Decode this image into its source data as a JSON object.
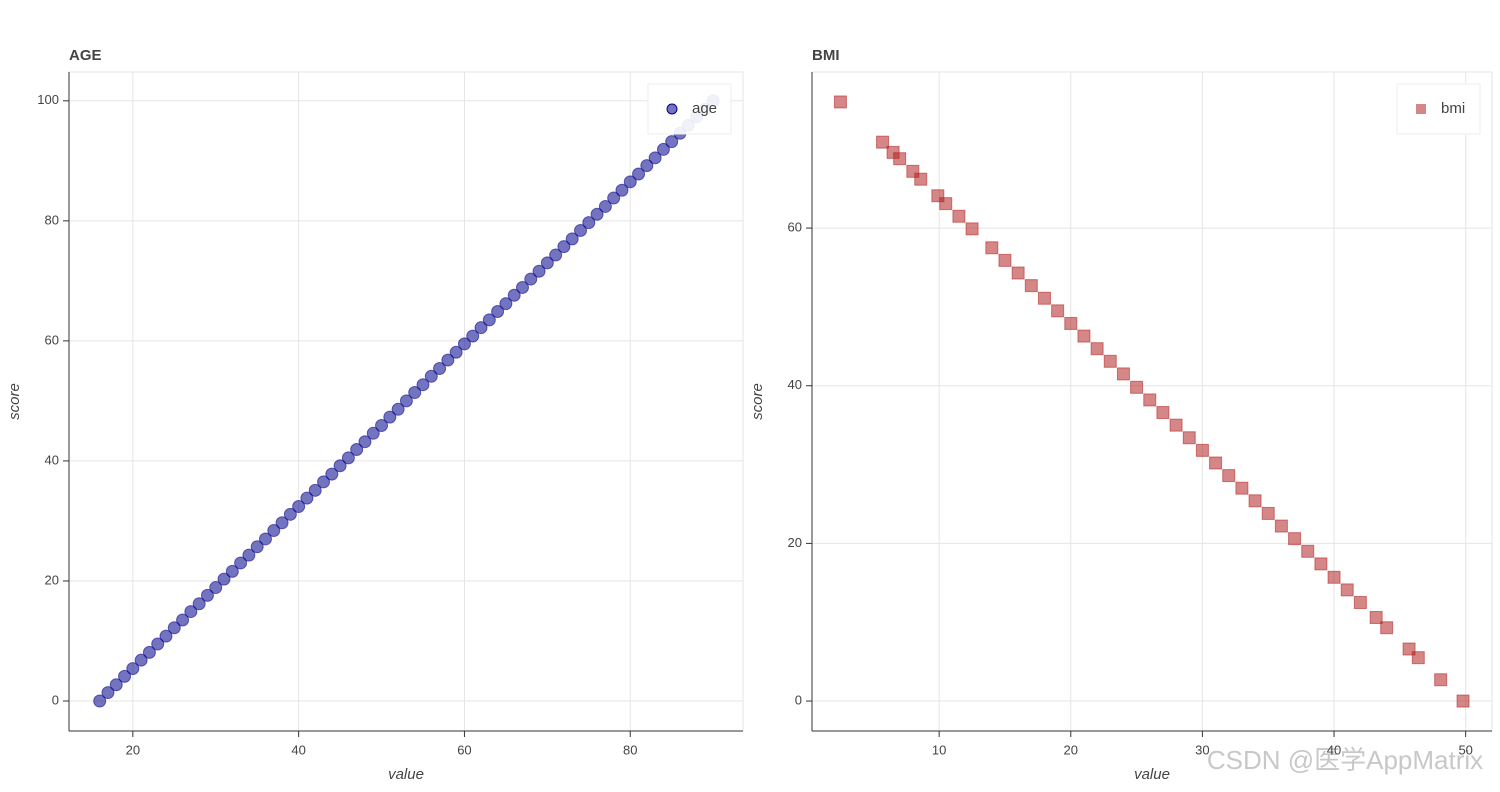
{
  "chart_data": [
    {
      "type": "scatter",
      "title": "AGE",
      "x_label": "value",
      "y_label": "score",
      "x": [
        16,
        17,
        18,
        19,
        20,
        21,
        22,
        23,
        24,
        25,
        26,
        27,
        28,
        29,
        30,
        31,
        32,
        33,
        34,
        35,
        36,
        37,
        38,
        39,
        40,
        41,
        42,
        43,
        44,
        45,
        46,
        47,
        48,
        49,
        50,
        51,
        52,
        53,
        54,
        55,
        56,
        57,
        58,
        59,
        60,
        61,
        62,
        63,
        64,
        65,
        66,
        67,
        68,
        69,
        70,
        71,
        72,
        73,
        74,
        75,
        76,
        77,
        78,
        79,
        80,
        81,
        82,
        83,
        84,
        85,
        86,
        87,
        88,
        89,
        90
      ],
      "series": [
        {
          "name": "age",
          "color": "#00008b",
          "marker": "circle",
          "alpha": 0.55,
          "values": [
            0,
            1.4,
            2.7,
            4.1,
            5.4,
            6.8,
            8.1,
            9.5,
            10.8,
            12.2,
            13.5,
            14.9,
            16.2,
            17.6,
            18.9,
            20.3,
            21.6,
            23.0,
            24.3,
            25.7,
            27.0,
            28.4,
            29.7,
            31.1,
            32.4,
            33.8,
            35.1,
            36.5,
            37.8,
            39.2,
            40.5,
            41.9,
            43.2,
            44.6,
            45.9,
            47.3,
            48.6,
            50.0,
            51.4,
            52.7,
            54.1,
            55.4,
            56.8,
            58.1,
            59.5,
            60.8,
            62.2,
            63.5,
            64.9,
            66.2,
            67.6,
            68.9,
            70.3,
            71.6,
            73.0,
            74.3,
            75.7,
            77.0,
            78.4,
            79.7,
            81.1,
            82.4,
            83.8,
            85.1,
            86.5,
            87.8,
            89.2,
            90.5,
            91.9,
            93.2,
            94.6,
            95.9,
            97.3,
            98.6,
            100
          ]
        }
      ],
      "xlim": [
        12.3,
        93.6
      ],
      "ylim": [
        -5,
        104.8
      ],
      "xticks": [
        20,
        40,
        60,
        80
      ],
      "yticks": [
        0,
        20,
        40,
        60,
        80,
        100
      ],
      "grid": true,
      "legend": "top-right"
    },
    {
      "type": "scatter",
      "title": "BMI",
      "x_label": "value",
      "y_label": "score",
      "x": [
        2.5,
        5.7,
        6.5,
        7.0,
        8.0,
        8.6,
        9.9,
        10.5,
        11.5,
        12.5,
        14,
        15,
        16,
        17,
        18,
        19,
        20,
        21,
        22,
        23,
        24,
        25,
        26,
        27,
        28,
        29,
        30,
        31,
        32,
        33,
        34,
        35,
        36,
        37,
        38,
        39,
        40,
        41,
        42,
        43.2,
        44,
        45.7,
        46.4,
        48.1,
        49.8
      ],
      "series": [
        {
          "name": "bmi",
          "color": "#b22222",
          "marker": "square",
          "alpha": 0.55,
          "values": [
            76.0,
            70.9,
            69.6,
            68.8,
            67.2,
            66.2,
            64.1,
            63.1,
            61.5,
            59.9,
            57.5,
            55.9,
            54.3,
            52.7,
            51.1,
            49.5,
            47.9,
            46.3,
            44.7,
            43.1,
            41.5,
            39.8,
            38.2,
            36.6,
            35.0,
            33.4,
            31.8,
            30.2,
            28.6,
            27.0,
            25.4,
            23.8,
            22.2,
            20.6,
            19.0,
            17.4,
            15.7,
            14.1,
            12.5,
            10.6,
            9.3,
            6.6,
            5.5,
            2.7,
            0
          ]
        }
      ],
      "xlim": [
        0.34,
        52
      ],
      "ylim": [
        -3.8,
        79.8
      ],
      "xticks": [
        10,
        20,
        30,
        40,
        50
      ],
      "yticks": [
        0,
        20,
        40,
        60
      ],
      "grid": true,
      "legend": "top-right"
    }
  ],
  "watermark": "CSDN @医学AppMatrix"
}
